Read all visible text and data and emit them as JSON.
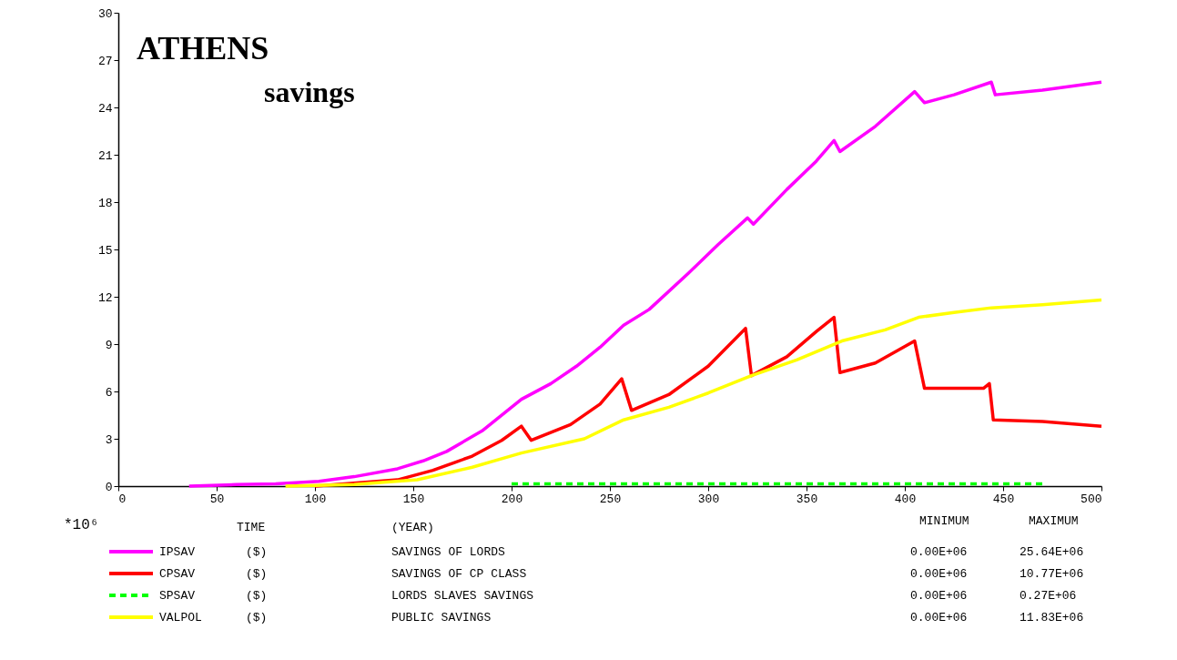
{
  "chart_data": {
    "type": "line",
    "title": "ATHENS",
    "subtitle": "savings",
    "ylabel": "*10⁶",
    "xlim": [
      0,
      500
    ],
    "xticks": [
      0,
      50,
      100,
      150,
      200,
      250,
      300,
      350,
      400,
      450,
      500
    ],
    "ylim": [
      0,
      30
    ],
    "yticks": [
      0,
      3,
      6,
      9,
      12,
      15,
      18,
      21,
      24,
      27,
      30
    ],
    "grid": false,
    "legend": "bottom",
    "series": [
      {
        "name": "IPSAV",
        "color": "#ff00ff",
        "line_style": "solid",
        "x": [
          36,
          60,
          80,
          102,
          120,
          142,
          155,
          167,
          185,
          205,
          220,
          233,
          245,
          257,
          270,
          290,
          305,
          320,
          323,
          340,
          355,
          364,
          367,
          385,
          405,
          410,
          425,
          444,
          446,
          470,
          500
        ],
        "values": [
          0,
          0.1,
          0.15,
          0.3,
          0.6,
          1.1,
          1.6,
          2.2,
          3.5,
          5.5,
          6.5,
          7.6,
          8.8,
          10.2,
          11.2,
          13.5,
          15.3,
          17.0,
          16.6,
          18.8,
          20.6,
          21.9,
          21.2,
          22.8,
          25.0,
          24.3,
          24.8,
          25.6,
          24.8,
          25.1,
          25.6
        ]
      },
      {
        "name": "CPSAV",
        "color": "#ff0000",
        "line_style": "solid",
        "x": [
          100,
          142,
          160,
          180,
          195,
          205,
          210,
          230,
          245,
          256,
          261,
          280,
          300,
          319,
          322,
          340,
          355,
          364,
          367,
          385,
          405,
          410,
          425,
          440,
          443,
          445,
          470,
          500
        ],
        "values": [
          0,
          0.4,
          1.0,
          1.9,
          2.9,
          3.8,
          2.9,
          3.9,
          5.2,
          6.8,
          4.8,
          5.8,
          7.6,
          10.0,
          7.0,
          8.2,
          9.8,
          10.7,
          7.2,
          7.8,
          9.2,
          6.2,
          6.2,
          6.2,
          6.5,
          4.2,
          4.1,
          3.8
        ]
      },
      {
        "name": "SPSAV",
        "color": "#00ff00",
        "line_style": "dashed",
        "x": [
          200,
          470
        ],
        "values": [
          0.15,
          0.15
        ]
      },
      {
        "name": "VALPOL",
        "color": "#ffff00",
        "line_style": "solid",
        "x": [
          85,
          120,
          152,
          180,
          205,
          237,
          257,
          280,
          300,
          322,
          345,
          368,
          390,
          407,
          425,
          444,
          470,
          500
        ],
        "values": [
          0,
          0.1,
          0.4,
          1.2,
          2.1,
          3.0,
          4.2,
          5.0,
          5.9,
          7.0,
          8.0,
          9.2,
          9.9,
          10.7,
          11.0,
          11.3,
          11.5,
          11.8
        ]
      }
    ],
    "annotations": [
      "TIME",
      "(YEAR)",
      "MINIMUM",
      "MAXIMUM",
      "($)",
      "SAVINGS OF LORDS",
      "0.00E+06",
      "25.64E+06",
      "($)",
      "SAVINGS OF CP CLASS",
      "0.00E+06",
      "10.77E+06",
      "($)",
      "LORDS SLAVES SAVINGS",
      "0.00E+06",
      "0.27E+06",
      "($)",
      "PUBLIC SAVINGS",
      "0.00E+06",
      "11.83E+06"
    ]
  }
}
